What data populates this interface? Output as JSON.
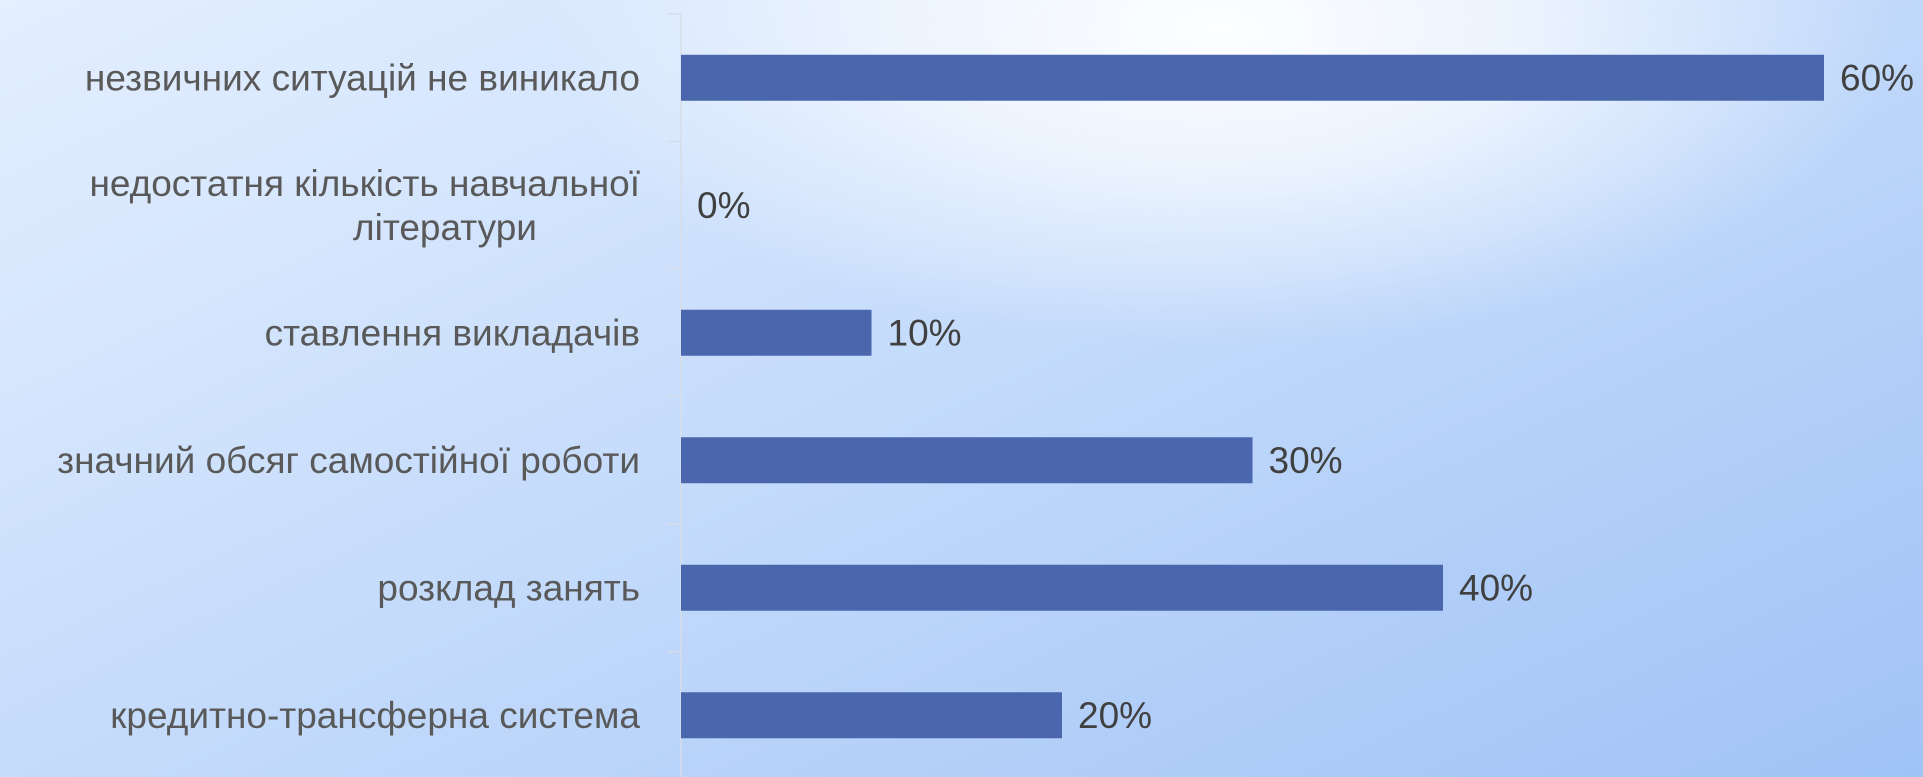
{
  "colors": {
    "bar": "#4a66ad",
    "axis": "#d6dde8",
    "category_text": "#595959",
    "value_text": "#404040"
  },
  "chart_data": {
    "type": "bar",
    "orientation": "horizontal",
    "categories": [
      "незвичних ситуацій не виникало",
      "недостатня кількість навчальної літератури",
      "ставлення викладачів",
      "значний обсяг самостійної роботи",
      "розклад занять",
      "кредитно-трансферна система"
    ],
    "category_lines": [
      [
        "незвичних ситуацій не виникало"
      ],
      [
        "недостатня кількість навчальної",
        "літератури"
      ],
      [
        "ставлення викладачів"
      ],
      [
        "значний обсяг самостійної роботи"
      ],
      [
        "розклад занять"
      ],
      [
        "кредитно-трансферна система"
      ]
    ],
    "values": [
      60,
      0,
      10,
      30,
      40,
      20
    ],
    "value_labels": [
      "60%",
      "0%",
      "10%",
      "30%",
      "40%",
      "20%"
    ],
    "unit": "%",
    "xlim": [
      0,
      60
    ],
    "grid": false,
    "legend": "none",
    "title": "",
    "xlabel": "",
    "ylabel": ""
  }
}
